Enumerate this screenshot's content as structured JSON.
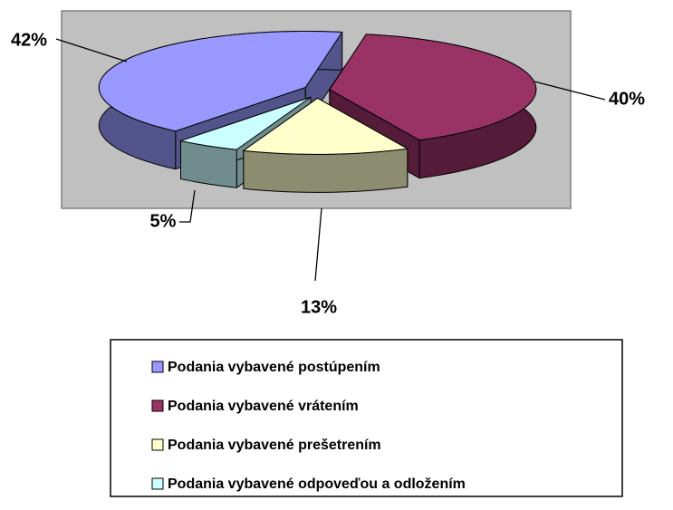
{
  "chart_data": {
    "type": "pie3d",
    "categories": [
      "Podania vybavené postúpením",
      "Podania vybavené vrátením",
      "Podania vybavené prešetrením",
      "Podania vybavené odpoveďou a odložením"
    ],
    "values": [
      42,
      40,
      13,
      5
    ],
    "value_labels": [
      "42%",
      "40%",
      "13%",
      "5%"
    ],
    "colors": [
      "#9999ff",
      "#993366",
      "#ffffcc",
      "#ccffff"
    ],
    "legend": "bottom"
  }
}
